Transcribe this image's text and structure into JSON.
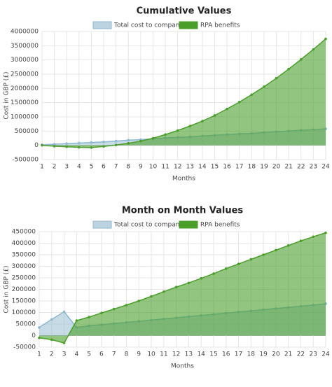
{
  "chart_data": [
    {
      "type": "line",
      "title": "Cumulative Values",
      "x_label": "Months",
      "y_label": "Cost in GBP (£)",
      "categories": [
        1,
        2,
        3,
        4,
        5,
        6,
        7,
        8,
        9,
        10,
        11,
        12,
        13,
        14,
        15,
        16,
        17,
        18,
        19,
        20,
        21,
        22,
        23,
        24
      ],
      "series": [
        {
          "name": "Total cost to company",
          "color": "#8fb8cf",
          "values": [
            20000,
            40000,
            60000,
            80000,
            100000,
            120000,
            150000,
            180000,
            200000,
            230000,
            260000,
            280000,
            300000,
            330000,
            350000,
            380000,
            400000,
            420000,
            450000,
            480000,
            500000,
            530000,
            550000,
            580000
          ]
        },
        {
          "name": "RPA benefits",
          "color": "#4a9e2a",
          "values": [
            0,
            -30000,
            -50000,
            -70000,
            -80000,
            -40000,
            10000,
            70000,
            150000,
            250000,
            380000,
            520000,
            680000,
            850000,
            1050000,
            1280000,
            1520000,
            1780000,
            2060000,
            2360000,
            2680000,
            3020000,
            3370000,
            3740000
          ]
        }
      ],
      "ylim": [
        -500000,
        4000000
      ],
      "yticks": [
        -500000,
        0,
        500000,
        1000000,
        1500000,
        2000000,
        2500000,
        3000000,
        3500000,
        4000000
      ],
      "grid": true
    },
    {
      "type": "line",
      "title": "Month on Month Values",
      "x_label": "Months",
      "y_label": "Cost in GBP (£)",
      "categories": [
        1,
        2,
        3,
        4,
        5,
        6,
        7,
        8,
        9,
        10,
        11,
        12,
        13,
        14,
        15,
        16,
        17,
        18,
        19,
        20,
        21,
        22,
        23,
        24
      ],
      "series": [
        {
          "name": "Total cost to company",
          "color": "#8fb8cf",
          "values": [
            35000,
            70000,
            103000,
            35000,
            42000,
            47000,
            52000,
            57000,
            62000,
            67000,
            72000,
            77000,
            82000,
            87000,
            92000,
            97000,
            102000,
            107000,
            112000,
            117000,
            122000,
            127000,
            132000,
            138000
          ]
        },
        {
          "name": "RPA benefits",
          "color": "#4a9e2a",
          "values": [
            -10000,
            -18000,
            -32000,
            65000,
            80000,
            98000,
            115000,
            132000,
            150000,
            170000,
            190000,
            210000,
            228000,
            248000,
            268000,
            290000,
            310000,
            330000,
            350000,
            370000,
            390000,
            410000,
            428000,
            445000
          ]
        }
      ],
      "ylim": [
        -50000,
        450000
      ],
      "yticks": [
        -50000,
        0,
        50000,
        100000,
        150000,
        200000,
        250000,
        300000,
        350000,
        400000,
        450000
      ],
      "grid": true
    }
  ]
}
